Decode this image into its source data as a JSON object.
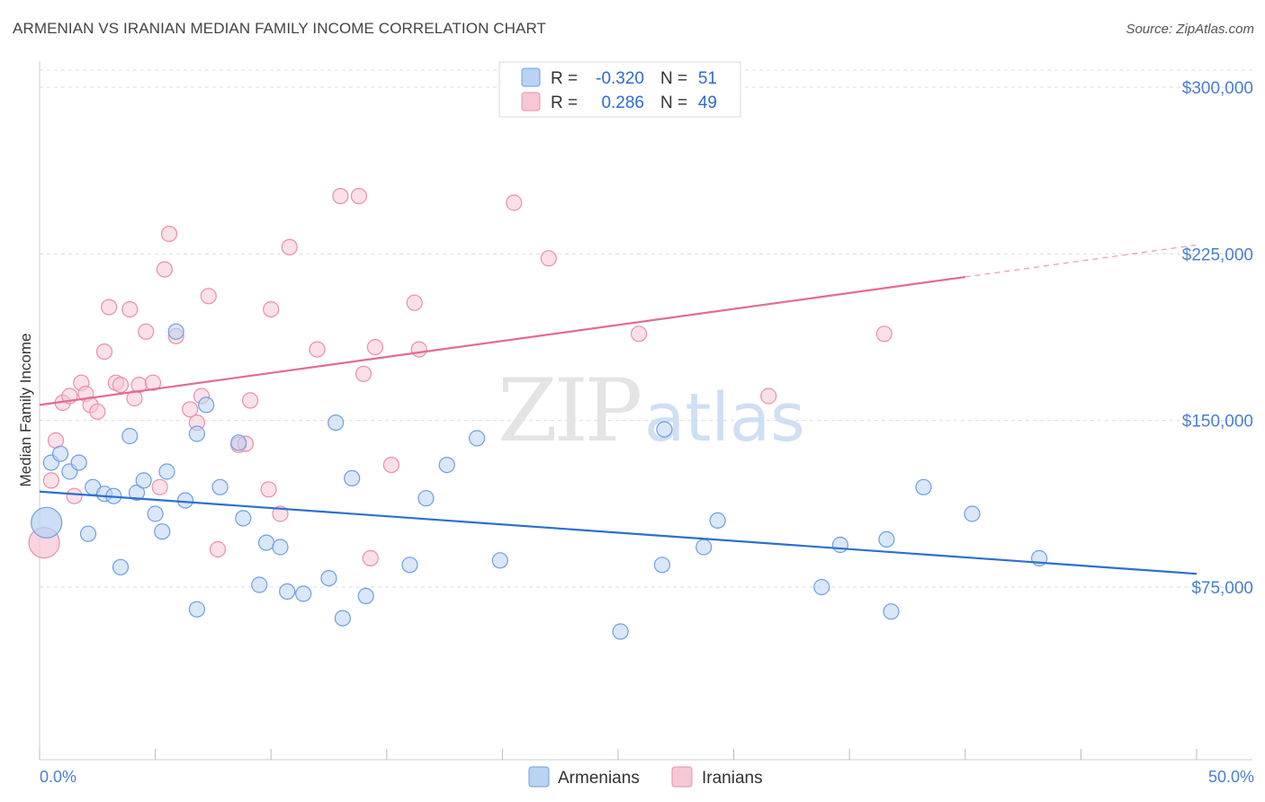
{
  "title": "ARMENIAN VS IRANIAN MEDIAN FAMILY INCOME CORRELATION CHART",
  "source": "Source: ZipAtlas.com",
  "watermark": {
    "zip": "ZIP",
    "atlas": "atlas"
  },
  "colors": {
    "armenian_fill": "#b9d3f3",
    "armenian_stroke": "#6f9fe0",
    "armenian_line": "#2d6fd0",
    "iranian_fill": "#f8c7d6",
    "iranian_stroke": "#ea8fab",
    "iranian_line": "#e26b93",
    "tick_label": "#4a7fd0",
    "grid": "#dddddd"
  },
  "legend": {
    "r_label": "R =",
    "n_label": "N =",
    "armenian": {
      "r": "-0.320",
      "n": "51"
    },
    "iranian": {
      "r": "0.286",
      "n": "49"
    }
  },
  "chart_data": {
    "type": "scatter",
    "title": "ARMENIAN VS IRANIAN MEDIAN FAMILY INCOME CORRELATION CHART",
    "xlabel": "",
    "ylabel": "Median Family Income",
    "xlim": [
      0,
      50
    ],
    "ylim": [
      0,
      315000
    ],
    "x_tick_labels": [
      "0.0%",
      "50.0%"
    ],
    "y_ticks": [
      75000,
      150000,
      225000,
      300000
    ],
    "y_tick_labels": [
      "$75,000",
      "$150,000",
      "$225,000",
      "$300,000"
    ],
    "grid": true,
    "legend_position": "top-center",
    "series": [
      {
        "name": "Armenians",
        "r": -0.32,
        "n": 51,
        "trend": {
          "x": [
            0,
            50
          ],
          "y": [
            118000,
            81000
          ],
          "dashed_from": null
        },
        "points": [
          [
            0.3,
            104000,
            "large"
          ],
          [
            0.5,
            131000
          ],
          [
            0.9,
            135000
          ],
          [
            1.3,
            127000
          ],
          [
            1.7,
            131000
          ],
          [
            2.1,
            99000
          ],
          [
            2.3,
            120000
          ],
          [
            2.8,
            117000
          ],
          [
            3.2,
            116000
          ],
          [
            3.5,
            84000
          ],
          [
            3.9,
            143000
          ],
          [
            4.2,
            117500
          ],
          [
            4.5,
            123000
          ],
          [
            5.0,
            108000
          ],
          [
            5.3,
            100000
          ],
          [
            5.5,
            127000
          ],
          [
            5.9,
            190000
          ],
          [
            6.3,
            114000
          ],
          [
            6.8,
            144000
          ],
          [
            6.8,
            65000
          ],
          [
            7.2,
            157000
          ],
          [
            7.8,
            120000
          ],
          [
            8.6,
            140000
          ],
          [
            8.8,
            106000
          ],
          [
            9.5,
            76000
          ],
          [
            9.8,
            95000
          ],
          [
            10.4,
            93000
          ],
          [
            10.7,
            73000
          ],
          [
            11.4,
            72000
          ],
          [
            12.5,
            79000
          ],
          [
            12.8,
            149000
          ],
          [
            13.1,
            61000
          ],
          [
            13.5,
            124000
          ],
          [
            14.1,
            71000
          ],
          [
            16.0,
            85000
          ],
          [
            16.7,
            115000
          ],
          [
            17.6,
            130000
          ],
          [
            18.9,
            142000
          ],
          [
            19.9,
            87000
          ],
          [
            25.1,
            55000
          ],
          [
            26.9,
            85000
          ],
          [
            27.0,
            146000
          ],
          [
            28.7,
            93000
          ],
          [
            29.3,
            105000
          ],
          [
            33.8,
            75000
          ],
          [
            34.6,
            94000
          ],
          [
            36.6,
            96500
          ],
          [
            36.8,
            64000
          ],
          [
            38.2,
            120000
          ],
          [
            40.3,
            108000
          ],
          [
            43.2,
            88000
          ]
        ]
      },
      {
        "name": "Iranians",
        "r": 0.286,
        "n": 49,
        "trend": {
          "x": [
            0,
            50
          ],
          "y": [
            157000,
            229000
          ],
          "dashed_from": 40
        },
        "points": [
          [
            0.2,
            95000,
            "large"
          ],
          [
            0.5,
            123000
          ],
          [
            0.7,
            141000
          ],
          [
            1.0,
            158000
          ],
          [
            1.3,
            161000
          ],
          [
            1.5,
            116000
          ],
          [
            1.8,
            167000
          ],
          [
            2.0,
            162000
          ],
          [
            2.2,
            157000
          ],
          [
            2.5,
            154000
          ],
          [
            2.8,
            181000
          ],
          [
            3.0,
            201000
          ],
          [
            3.3,
            167000
          ],
          [
            3.5,
            166000
          ],
          [
            3.9,
            200000
          ],
          [
            4.1,
            160000
          ],
          [
            4.3,
            166000
          ],
          [
            4.6,
            190000
          ],
          [
            4.9,
            167000
          ],
          [
            5.2,
            120000
          ],
          [
            5.4,
            218000
          ],
          [
            5.6,
            234000
          ],
          [
            5.9,
            188000
          ],
          [
            6.5,
            155000
          ],
          [
            6.8,
            149000
          ],
          [
            7.0,
            161000
          ],
          [
            7.3,
            206000
          ],
          [
            7.7,
            92000
          ],
          [
            8.6,
            139000
          ],
          [
            8.9,
            139500
          ],
          [
            9.1,
            159000
          ],
          [
            9.9,
            119000
          ],
          [
            10.0,
            200000
          ],
          [
            10.4,
            108000
          ],
          [
            10.8,
            228000
          ],
          [
            12.0,
            182000
          ],
          [
            13.0,
            251000
          ],
          [
            13.8,
            251000
          ],
          [
            14.0,
            171000
          ],
          [
            14.3,
            88000
          ],
          [
            14.5,
            183000
          ],
          [
            15.2,
            130000
          ],
          [
            16.2,
            203000
          ],
          [
            16.4,
            182000
          ],
          [
            20.5,
            248000
          ],
          [
            22.0,
            223000
          ],
          [
            25.9,
            189000
          ],
          [
            31.5,
            161000
          ],
          [
            36.5,
            189000
          ]
        ]
      }
    ]
  }
}
